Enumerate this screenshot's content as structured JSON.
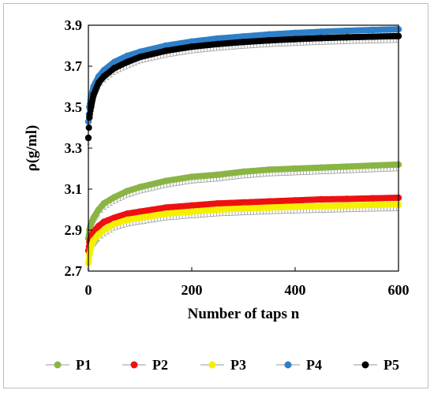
{
  "chart_data": {
    "type": "scatter",
    "title": "",
    "xlabel": "Number of taps n",
    "ylabel": "ρ(g/ml)",
    "xlim": [
      0,
      600
    ],
    "ylim": [
      2.7,
      3.9
    ],
    "xticks": [
      "0",
      "200",
      "400",
      "600"
    ],
    "yticks": [
      "2.7",
      "2.9",
      "3.1",
      "3.3",
      "3.5",
      "3.7",
      "3.9"
    ],
    "grid": false,
    "legend_position": "bottom",
    "error_bars": true,
    "series": [
      {
        "name": "P1",
        "color": "#8ab545",
        "x": [
          0,
          2,
          5,
          10,
          20,
          30,
          50,
          75,
          100,
          150,
          200,
          250,
          300,
          350,
          400,
          450,
          500,
          550,
          600
        ],
        "y": [
          2.86,
          2.9,
          2.93,
          2.96,
          3.0,
          3.03,
          3.06,
          3.09,
          3.11,
          3.14,
          3.16,
          3.17,
          3.185,
          3.195,
          3.2,
          3.205,
          3.21,
          3.215,
          3.22
        ]
      },
      {
        "name": "P2",
        "color": "#ee1111",
        "x": [
          0,
          2,
          5,
          10,
          20,
          30,
          50,
          75,
          100,
          150,
          200,
          250,
          300,
          350,
          400,
          450,
          500,
          550,
          600
        ],
        "y": [
          2.8,
          2.84,
          2.87,
          2.89,
          2.92,
          2.94,
          2.96,
          2.98,
          2.99,
          3.01,
          3.02,
          3.03,
          3.035,
          3.04,
          3.045,
          3.05,
          3.052,
          3.055,
          3.058
        ]
      },
      {
        "name": "P3",
        "color": "#f5f000",
        "x": [
          0,
          2,
          5,
          10,
          20,
          30,
          50,
          75,
          100,
          150,
          200,
          250,
          300,
          350,
          400,
          450,
          500,
          550,
          600
        ],
        "y": [
          2.74,
          2.78,
          2.82,
          2.85,
          2.88,
          2.9,
          2.93,
          2.95,
          2.96,
          2.98,
          2.99,
          3.0,
          3.005,
          3.01,
          3.014,
          3.017,
          3.02,
          3.023,
          3.025
        ]
      },
      {
        "name": "P4",
        "color": "#2f7fc8",
        "x": [
          0,
          2,
          5,
          10,
          20,
          30,
          50,
          75,
          100,
          150,
          200,
          250,
          300,
          350,
          400,
          450,
          500,
          550,
          600
        ],
        "y": [
          3.43,
          3.5,
          3.55,
          3.6,
          3.65,
          3.68,
          3.72,
          3.75,
          3.77,
          3.8,
          3.82,
          3.835,
          3.845,
          3.855,
          3.862,
          3.868,
          3.873,
          3.877,
          3.88
        ]
      },
      {
        "name": "P5",
        "color": "#000000",
        "x": [
          0,
          2,
          5,
          10,
          20,
          30,
          50,
          75,
          100,
          150,
          200,
          250,
          300,
          350,
          400,
          450,
          500,
          550,
          600
        ],
        "y": [
          3.35,
          3.45,
          3.5,
          3.56,
          3.62,
          3.65,
          3.69,
          3.72,
          3.745,
          3.775,
          3.795,
          3.808,
          3.818,
          3.826,
          3.832,
          3.837,
          3.841,
          3.844,
          3.847
        ]
      }
    ]
  }
}
